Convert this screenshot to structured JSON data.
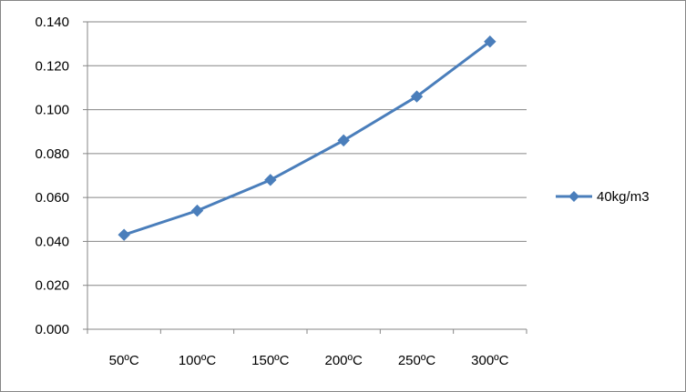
{
  "chart_data": {
    "type": "line",
    "categories": [
      "50ºC",
      "100ºC",
      "150ºC",
      "200ºC",
      "250ºC",
      "300ºC"
    ],
    "series": [
      {
        "name": "40kg/m3",
        "values": [
          0.043,
          0.054,
          0.068,
          0.086,
          0.106,
          0.131
        ],
        "color": "#4a7ebb",
        "marker": "diamond"
      }
    ],
    "y_ticks": [
      "0.000",
      "0.020",
      "0.040",
      "0.060",
      "0.080",
      "0.100",
      "0.120",
      "0.140"
    ],
    "ylim": [
      0,
      0.14
    ],
    "grid": true,
    "legend_position": "right",
    "colors": {
      "gridline": "#868686",
      "axis": "#868686",
      "series": "#4a7ebb"
    }
  }
}
